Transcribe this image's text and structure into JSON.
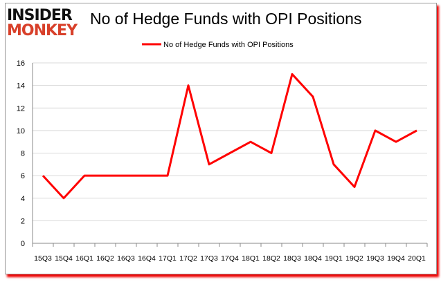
{
  "logo": {
    "line1": "INSIDER",
    "line2": "MONKEY"
  },
  "chart_data": {
    "type": "line",
    "title": "No of Hedge Funds with OPI Positions",
    "xlabel": "",
    "ylabel": "",
    "categories": [
      "15Q3",
      "15Q4",
      "16Q1",
      "16Q2",
      "16Q3",
      "16Q4",
      "17Q1",
      "17Q2",
      "17Q3",
      "17Q4",
      "18Q1",
      "18Q2",
      "18Q3",
      "18Q4",
      "19Q1",
      "19Q2",
      "19Q3",
      "19Q4",
      "20Q1"
    ],
    "series": [
      {
        "name": "No of Hedge Funds with OPI Positions",
        "color": "#ff0000",
        "values": [
          6,
          4,
          6,
          6,
          6,
          6,
          6,
          14,
          7,
          8,
          9,
          8,
          15,
          13,
          7,
          5,
          10,
          9,
          10
        ]
      }
    ],
    "ylim": [
      0,
      16
    ],
    "yticks": [
      0,
      2,
      4,
      6,
      8,
      10,
      12,
      14,
      16
    ],
    "grid": "horizontal",
    "legend": "top-center"
  }
}
